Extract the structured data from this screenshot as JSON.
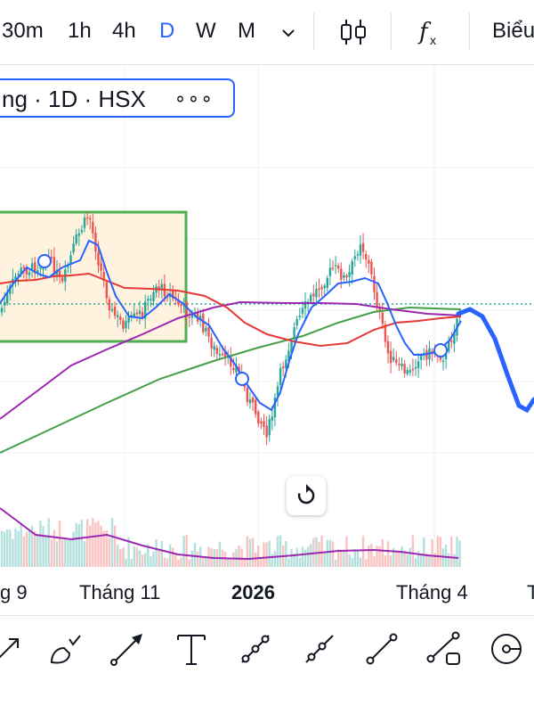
{
  "timeframes": {
    "m30": "30m",
    "h1": "1h",
    "h4": "4h",
    "d": "D",
    "w": "W",
    "m": "M"
  },
  "toolbar": {
    "chart_label": "Biểu"
  },
  "symbol": {
    "label": "ng · 1D · HSX",
    "more": "∘∘∘"
  },
  "x_axis": {
    "t1": "g 9",
    "t2": "Tháng 11",
    "t3": "2026",
    "t4": "Tháng 4",
    "t5": "T"
  },
  "colors": {
    "up": "#26a69a",
    "down": "#ef5350",
    "ma_blue": "#2962ff",
    "ma_red": "#e53935",
    "ma_purple": "#9c27b0",
    "ma_green": "#43a047",
    "rect_border": "#4caf50",
    "rect_fill": "#fff3e0",
    "active_tf": "#2962ff"
  },
  "icons": {
    "dropdown": "chevron-down-icon",
    "candles": "candlestick-icon",
    "indicators": "fx-icon",
    "reset": "reset-rotate-icon",
    "drawing_tools": [
      "arrow-line-icon",
      "brush-icon",
      "arrow-icon",
      "text-icon",
      "path-icon",
      "ray-icon",
      "trend-line-icon",
      "info-line-icon",
      "circle-target-icon"
    ]
  }
}
